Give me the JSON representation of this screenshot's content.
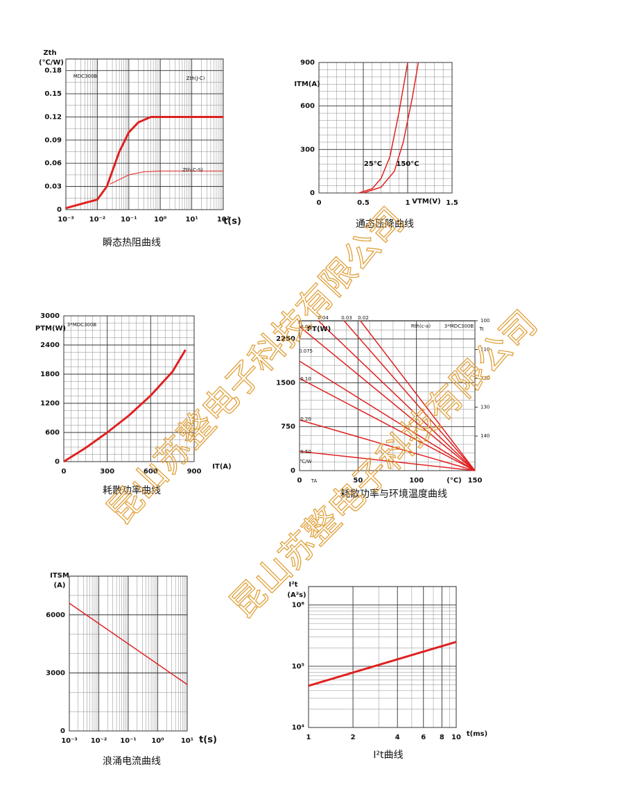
{
  "chart_data": [
    {
      "type": "line",
      "title": "瞬态热阻曲线",
      "xlabel": "t(s)",
      "ylabel": "Zth",
      "yunit": "(℃/W)",
      "xscale": "log",
      "xlim": [
        0.001,
        100
      ],
      "xticks": [
        {
          "value": 0.001,
          "label": "10⁻³"
        },
        {
          "value": 0.01,
          "label": "10⁻²"
        },
        {
          "value": 0.1,
          "label": "10⁻¹"
        },
        {
          "value": 1,
          "label": "10⁰"
        },
        {
          "value": 10,
          "label": "10¹"
        },
        {
          "value": 100,
          "label": "10²"
        }
      ],
      "ylim": [
        0,
        0.195
      ],
      "yticks": [
        0,
        0.03,
        0.06,
        0.09,
        0.12,
        0.15,
        0.18
      ],
      "yminor": 2,
      "annotations": [
        "MDC300B"
      ],
      "series": [
        {
          "name": "Zth(J-C)",
          "color": "#e02020",
          "width": 3,
          "x": [
            0.001,
            0.01,
            0.02,
            0.05,
            0.1,
            0.2,
            0.5,
            1,
            100
          ],
          "values": [
            0.002,
            0.013,
            0.03,
            0.075,
            0.1,
            0.113,
            0.12,
            0.12,
            0.12
          ]
        },
        {
          "name": "Zth(C-S)",
          "color": "#e02020",
          "width": 1,
          "x": [
            0.025,
            0.1,
            0.3,
            1,
            100
          ],
          "values": [
            0.033,
            0.045,
            0.049,
            0.05,
            0.05
          ]
        }
      ]
    },
    {
      "type": "line",
      "title": "通态压降曲线",
      "xlabel": "VTM(V)",
      "ylabel": "ITM(A)",
      "xlim": [
        0,
        1.5
      ],
      "xticks": [
        0,
        0.5,
        1,
        1.5
      ],
      "xminor": 5,
      "ylim": [
        0,
        900
      ],
      "yticks": [
        0,
        300,
        600,
        900
      ],
      "yminor": 6,
      "series": [
        {
          "name": "25°C",
          "color": "#e02020",
          "width": 1.5,
          "x": [
            0.45,
            0.6,
            0.7,
            0.8,
            0.9,
            1.0
          ],
          "values": [
            0,
            30,
            100,
            250,
            550,
            900
          ]
        },
        {
          "name": "150°C",
          "color": "#e02020",
          "width": 1.5,
          "x": [
            0.5,
            0.7,
            0.85,
            0.95,
            1.05,
            1.12
          ],
          "values": [
            0,
            40,
            150,
            350,
            650,
            900
          ]
        }
      ]
    },
    {
      "type": "line",
      "title": "耗散功率曲线",
      "xlabel": "IT(A)",
      "ylabel": "PTM(W)",
      "xlim": [
        0,
        900
      ],
      "xticks": [
        0,
        300,
        600,
        900
      ],
      "xminor": 6,
      "ylim": [
        0,
        3000
      ],
      "yticks": [
        0,
        600,
        1200,
        1800,
        2400,
        3000
      ],
      "yminor": 4,
      "annotations": [
        "3*MDC300B"
      ],
      "series": [
        {
          "color": "#e02020",
          "width": 3,
          "x": [
            0,
            150,
            300,
            450,
            600,
            750,
            840
          ],
          "values": [
            0,
            280,
            600,
            950,
            1360,
            1850,
            2300
          ]
        }
      ]
    },
    {
      "type": "line",
      "title": "耗散功率与环境温度曲线",
      "xlabel": "(°C)",
      "ylabel": "PT(W)",
      "xlim": [
        0,
        150
      ],
      "xticks": [
        0,
        50,
        100,
        150
      ],
      "xminor": 5,
      "ylim": [
        0,
        2560
      ],
      "yticks": [
        0,
        750,
        1500,
        2250
      ],
      "yminor": 5,
      "y2lim": [
        152,
        100
      ],
      "y2ticks": [
        100,
        110,
        120,
        130,
        140
      ],
      "annotations": [
        "Rth(c-a)",
        "3*MDC300B",
        "TA",
        "Tc",
        "℃/W"
      ],
      "series": [
        {
          "name": "0.04",
          "color": "#e02020",
          "width": 1.5,
          "x": [
            16,
            150
          ],
          "values": [
            2560,
            0
          ]
        },
        {
          "name": "0.03",
          "color": "#e02020",
          "width": 1.5,
          "x": [
            38,
            150
          ],
          "values": [
            2560,
            0
          ]
        },
        {
          "name": "0.02",
          "color": "#e02020",
          "width": 1.5,
          "x": [
            52,
            150
          ],
          "values": [
            2560,
            0
          ]
        },
        {
          "name": "0.06",
          "color": "#e02020",
          "width": 1.5,
          "x": [
            0,
            150
          ],
          "values": [
            2460,
            0
          ]
        },
        {
          "name": "0.075",
          "color": "#e02020",
          "width": 1.5,
          "x": [
            0,
            150
          ],
          "values": [
            1870,
            0
          ]
        },
        {
          "name": "0.10",
          "color": "#e02020",
          "width": 1.5,
          "x": [
            0,
            150
          ],
          "values": [
            1575,
            0
          ]
        },
        {
          "name": "0.20",
          "color": "#e02020",
          "width": 1.5,
          "x": [
            0,
            150
          ],
          "values": [
            865,
            0
          ]
        },
        {
          "name": "0.50",
          "color": "#e02020",
          "width": 1.5,
          "x": [
            0,
            150
          ],
          "values": [
            330,
            0
          ]
        }
      ]
    },
    {
      "type": "line",
      "title": "浪涌电流曲线",
      "xlabel": "t(s)",
      "ylabel": "ITSM",
      "yunit": "(A)",
      "xscale": "log",
      "xlim": [
        0.001,
        10
      ],
      "xticks": [
        {
          "value": 0.001,
          "label": "10⁻³"
        },
        {
          "value": 0.01,
          "label": "10⁻²"
        },
        {
          "value": 0.1,
          "label": "10⁻¹"
        },
        {
          "value": 1,
          "label": "10⁰"
        },
        {
          "value": 10,
          "label": "10¹"
        }
      ],
      "ylim": [
        0,
        8000
      ],
      "yticks": [
        0,
        3000,
        6000
      ],
      "yminor": 3,
      "series": [
        {
          "color": "#e02020",
          "width": 1.5,
          "x": [
            0.001,
            10
          ],
          "values": [
            6600,
            2400
          ]
        }
      ]
    },
    {
      "type": "line",
      "title": "I²t曲线",
      "xlabel": "t(ms)",
      "ylabel": "I²t",
      "yunit": "(A²s)",
      "xscale": "log",
      "xlim": [
        1,
        10
      ],
      "xticks": [
        1,
        2,
        4,
        6,
        8,
        10
      ],
      "yscale": "log",
      "ylim": [
        10000,
        2000000
      ],
      "yticks": [
        {
          "value": 10000,
          "label": "10⁴"
        },
        {
          "value": 100000,
          "label": "10⁵"
        },
        {
          "value": 1000000,
          "label": "10⁶"
        }
      ],
      "series": [
        {
          "color": "#e02020",
          "width": 3,
          "x": [
            1,
            10
          ],
          "values": [
            48000,
            250000
          ]
        }
      ]
    }
  ],
  "watermarks": [
    "昆山苏整电子科技有限公司",
    "昆山苏整电子科技有限公司"
  ]
}
